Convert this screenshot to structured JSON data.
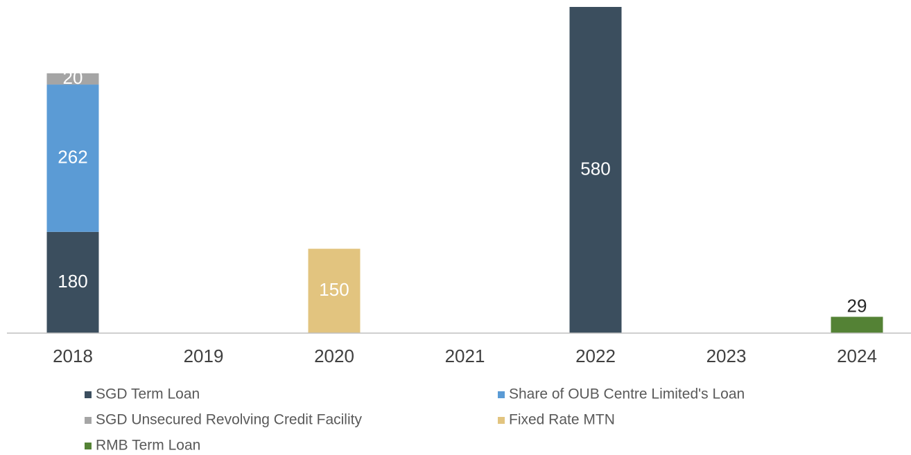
{
  "chart_data": {
    "type": "bar",
    "stacked": true,
    "categories": [
      "2018",
      "2019",
      "2020",
      "2021",
      "2022",
      "2023",
      "2024"
    ],
    "series": [
      {
        "name": "SGD Term Loan",
        "color": "#3b4e5e",
        "values": [
          180,
          null,
          null,
          null,
          580,
          null,
          null
        ]
      },
      {
        "name": "Share of OUB Centre Limited's Loan",
        "color": "#5b9bd5",
        "values": [
          262,
          null,
          null,
          null,
          null,
          null,
          null
        ]
      },
      {
        "name": "SGD Unsecured Revolving Credit Facility",
        "color": "#a5a5a5",
        "values": [
          20,
          null,
          null,
          null,
          null,
          null,
          null
        ]
      },
      {
        "name": "Fixed Rate MTN",
        "color": "#e2c47f",
        "values": [
          null,
          null,
          150,
          null,
          null,
          null,
          null
        ]
      },
      {
        "name": "RMB Term Loan",
        "color": "#548235",
        "values": [
          null,
          null,
          null,
          null,
          null,
          null,
          29
        ]
      }
    ]
  }
}
